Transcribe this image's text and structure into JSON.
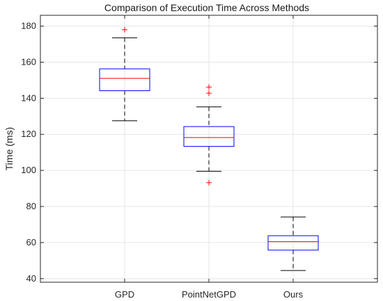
{
  "chart_data": {
    "type": "boxplot",
    "title": "Comparison of Execution Time Across Methods",
    "xlabel": "",
    "ylabel": "Time (ms)",
    "ylim": [
      38,
      186
    ],
    "yticks": [
      40,
      60,
      80,
      100,
      120,
      140,
      160,
      180
    ],
    "grid": true,
    "categories": [
      "GPD",
      "PointNetGPD",
      "Ours"
    ],
    "boxes": [
      {
        "category": "GPD",
        "whisker_low": 127.5,
        "q1": 144.2,
        "median": 151.0,
        "q3": 156.3,
        "whisker_high": 173.5,
        "outliers": [
          178.0
        ]
      },
      {
        "category": "PointNetGPD",
        "whisker_low": 99.5,
        "q1": 113.3,
        "median": 118.2,
        "q3": 124.3,
        "whisker_high": 135.2,
        "outliers": [
          146.2,
          142.8,
          93.2
        ]
      },
      {
        "category": "Ours",
        "whisker_low": 44.5,
        "q1": 55.8,
        "median": 60.5,
        "q3": 63.8,
        "whisker_high": 74.2,
        "outliers": []
      }
    ],
    "colors": {
      "box": "#0000ff",
      "median": "#ff0000",
      "whisker": "#000000",
      "outlier": "#ff0000"
    }
  }
}
